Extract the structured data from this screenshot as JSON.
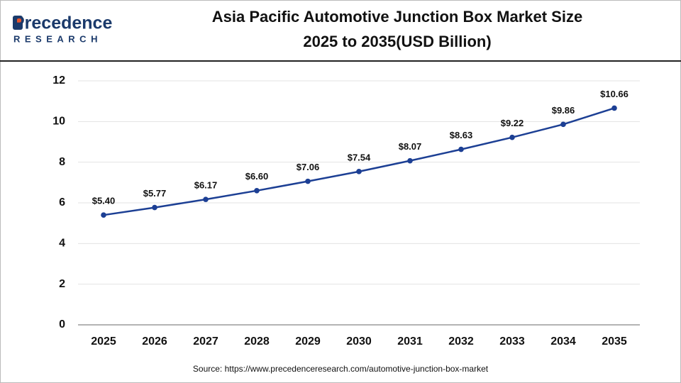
{
  "logo": {
    "name": "Precedence",
    "tagline": "RESEARCH"
  },
  "chart_data": {
    "type": "line",
    "title": "Asia Pacific Automotive Junction Box Market Size",
    "subtitle": "2025 to 2035(USD Billion)",
    "categories": [
      "2025",
      "2026",
      "2027",
      "2028",
      "2029",
      "2030",
      "2031",
      "2032",
      "2033",
      "2034",
      "2035"
    ],
    "series": [
      {
        "color": "#1c3f94",
        "values": [
          5.4,
          5.77,
          6.17,
          6.6,
          7.06,
          7.54,
          8.07,
          8.63,
          9.22,
          9.86,
          10.66
        ],
        "value_labels": [
          "$5.40",
          "$5.77",
          "$6.17",
          "$6.60",
          "$7.06",
          "$7.54",
          "$8.07",
          "$8.63",
          "$9.22",
          "$9.86",
          "$10.66"
        ]
      }
    ],
    "ylim": [
      0,
      12
    ],
    "yticks": [
      0,
      2,
      4,
      6,
      8,
      10,
      12
    ],
    "grid": true,
    "source": "Source: https://www.precedenceresearch.com/automotive-junction-box-market"
  }
}
